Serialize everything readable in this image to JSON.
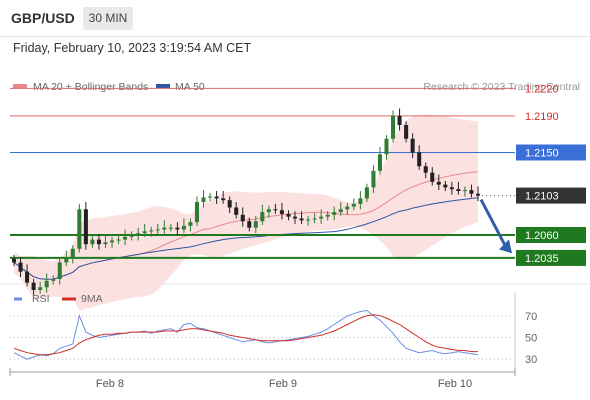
{
  "header": {
    "pair": "GBP/USD",
    "timeframe": "30 MIN"
  },
  "timestamp": "Friday, February 10, 2023 3:19:54 AM CET",
  "legend": [
    {
      "label": "MA 20 + Bollinger Bands",
      "color": "#e88a8a"
    },
    {
      "label": "MA 50",
      "color": "#2f55a8"
    }
  ],
  "watermark": "Research © 2023 Trading Central",
  "colors": {
    "candle_up": "#2e7d32",
    "candle_down": "#222222",
    "bollinger_fill": "#fbdcdc",
    "ma20": "#e88a8a",
    "ma50": "#2f55a8",
    "resistance": "#e06666",
    "pivot": "#3a6fd8",
    "support": "#1f7a1f",
    "current": "#333333",
    "arrow": "#2f5fa8",
    "rsi": "#6a8ee0",
    "rsi_ma": "#d0302a"
  },
  "chart_data": [
    {
      "type": "candlestick",
      "series": [
        {
          "name": "MA 20 + Bollinger Bands"
        },
        {
          "name": "MA 50"
        }
      ],
      "ylim": [
        1.2,
        1.224
      ],
      "x_ticks": [
        "Feb 8",
        "Feb 9",
        "Feb 10"
      ],
      "levels": [
        {
          "value": 1.222,
          "label": "1.2220",
          "kind": "resistance"
        },
        {
          "value": 1.219,
          "label": "1.2190",
          "kind": "resistance"
        },
        {
          "value": 1.215,
          "label": "1.2150",
          "kind": "pivot"
        },
        {
          "value": 1.2103,
          "label": "1.2103",
          "kind": "current"
        },
        {
          "value": 1.206,
          "label": "1.2060",
          "kind": "support"
        },
        {
          "value": 1.2035,
          "label": "1.2035",
          "kind": "support"
        }
      ],
      "closes": [
        1.203,
        1.202,
        1.2008,
        1.2,
        1.2003,
        1.201,
        1.2012,
        1.203,
        1.2035,
        1.2045,
        1.2088,
        1.205,
        1.2055,
        1.205,
        1.2052,
        1.2054,
        1.2055,
        1.2058,
        1.206,
        1.2062,
        1.2064,
        1.2065,
        1.2066,
        1.2068,
        1.2068,
        1.2066,
        1.207,
        1.2074,
        1.2096,
        1.2101,
        1.2102,
        1.21,
        1.2098,
        1.209,
        1.2082,
        1.2075,
        1.2068,
        1.2075,
        1.2085,
        1.2088,
        1.2087,
        1.2083,
        1.208,
        1.2078,
        1.2076,
        1.2077,
        1.2078,
        1.208,
        1.2082,
        1.2085,
        1.2088,
        1.2091,
        1.2094,
        1.21,
        1.2112,
        1.213,
        1.2148,
        1.2165,
        1.219,
        1.218,
        1.2165,
        1.215,
        1.2135,
        1.2128,
        1.2118,
        1.2115,
        1.2112,
        1.211,
        1.2108,
        1.2109,
        1.2105,
        1.2103
      ]
    },
    {
      "type": "line",
      "series": [
        {
          "name": "RSI"
        },
        {
          "name": "9MA"
        }
      ],
      "ylim": [
        20,
        80
      ],
      "y_ticks": [
        70,
        50,
        30
      ],
      "rsi": [
        36,
        33,
        30,
        32,
        34,
        33,
        35,
        40,
        42,
        44,
        70,
        55,
        52,
        50,
        51,
        52,
        53,
        54,
        55,
        55,
        56,
        54,
        56,
        57,
        58,
        55,
        62,
        63,
        59,
        58,
        56,
        54,
        52,
        50,
        48,
        46,
        47,
        48,
        46,
        45,
        46,
        47,
        48,
        49,
        50,
        51,
        53,
        55,
        58,
        62,
        66,
        70,
        72,
        74,
        75,
        70,
        66,
        60,
        54,
        46,
        40,
        38,
        36,
        37,
        38,
        36,
        35,
        36,
        37,
        36,
        35,
        34
      ],
      "rsi_ma": [
        40,
        38,
        36,
        35,
        34,
        34,
        35,
        36,
        38,
        40,
        45,
        48,
        50,
        52,
        53,
        53,
        54,
        54,
        55,
        55,
        55,
        55,
        55,
        56,
        56,
        56,
        57,
        58,
        58,
        57,
        56,
        55,
        54,
        52,
        51,
        50,
        49,
        48,
        47,
        47,
        47,
        47,
        47,
        48,
        49,
        50,
        51,
        52,
        54,
        56,
        59,
        62,
        65,
        68,
        70,
        71,
        70,
        68,
        65,
        62,
        58,
        54,
        50,
        46,
        43,
        41,
        40,
        39,
        38,
        38,
        37,
        37
      ]
    }
  ]
}
